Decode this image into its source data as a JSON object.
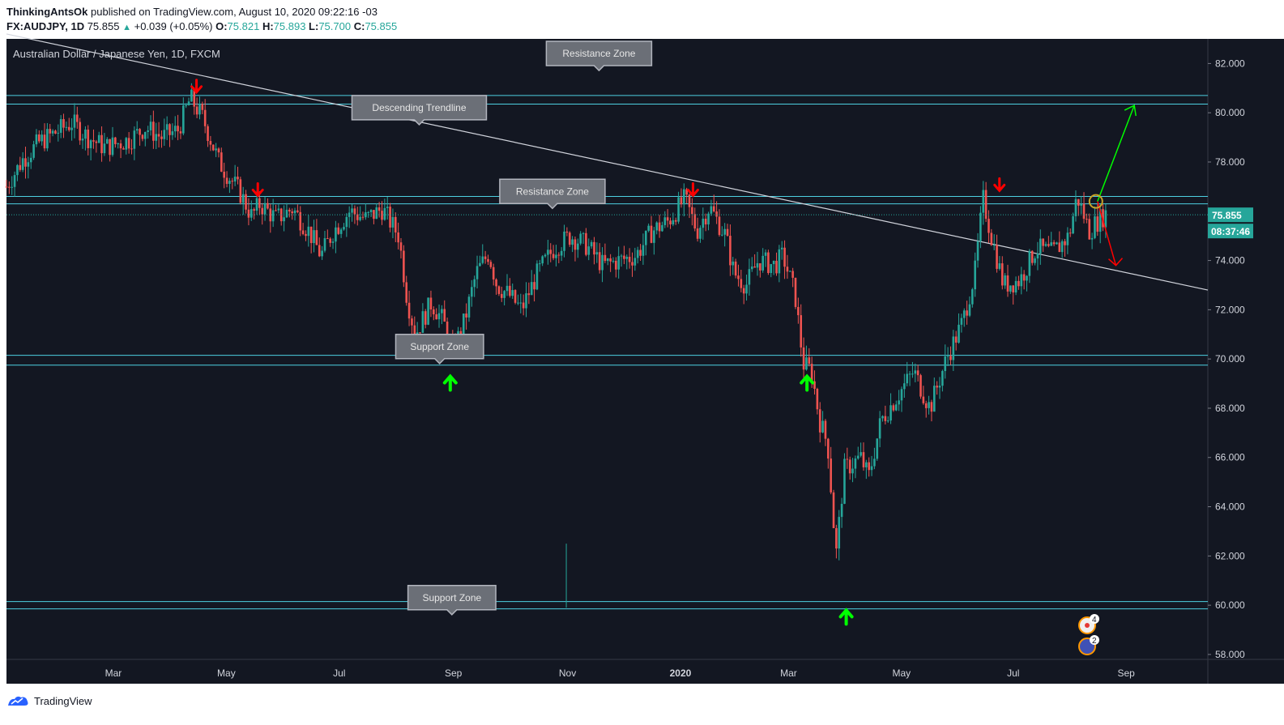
{
  "header": {
    "author": "ThinkingAntsOk",
    "published_text": "published on TradingView.com, August 10, 2020 09:22:16 -03"
  },
  "symbol_bar": {
    "symbol": "FX:AUDJPY, 1D",
    "last": "75.855",
    "change": "+0.039 (+0.05%)",
    "open_key": "O:",
    "open": "75.821",
    "high_key": "H:",
    "high": "75.893",
    "low_key": "L:",
    "low": "75.700",
    "close_key": "C:",
    "close": "75.855"
  },
  "chart_data": {
    "type": "candlestick",
    "title": "Australian Dollar / Japanese Yen, 1D, FXCM",
    "ylim": [
      57.8,
      83.0
    ],
    "y_ticks": [
      "82.000",
      "80.000",
      "78.000",
      "76.000",
      "74.000",
      "72.000",
      "70.000",
      "68.000",
      "66.000",
      "64.000",
      "62.000",
      "60.000",
      "58.000"
    ],
    "x_ticks": [
      "Mar",
      "May",
      "Jul",
      "Sep",
      "Nov",
      "2020",
      "Mar",
      "May",
      "Jul",
      "Sep"
    ],
    "price_label": "75.855",
    "countdown_label": "08:37:46",
    "price_path": [
      [
        0,
        77.0
      ],
      [
        0.02,
        78.1
      ],
      [
        0.04,
        78.8
      ],
      [
        0.06,
        79.2
      ],
      [
        0.08,
        79.6
      ],
      [
        0.1,
        79.0
      ],
      [
        0.12,
        78.6
      ],
      [
        0.15,
        78.9
      ],
      [
        0.17,
        79.4
      ],
      [
        0.19,
        79.0
      ],
      [
        0.21,
        79.3
      ],
      [
        0.225,
        80.6
      ],
      [
        0.24,
        79.8
      ],
      [
        0.26,
        78.0
      ],
      [
        0.285,
        76.8
      ],
      [
        0.3,
        75.8
      ],
      [
        0.31,
        76.3
      ],
      [
        0.33,
        75.7
      ],
      [
        0.35,
        76.1
      ],
      [
        0.37,
        75.2
      ],
      [
        0.385,
        74.2
      ],
      [
        0.4,
        75.2
      ],
      [
        0.42,
        76.0
      ],
      [
        0.44,
        75.7
      ],
      [
        0.46,
        76.1
      ],
      [
        0.48,
        75.0
      ],
      [
        0.49,
        72.5
      ],
      [
        0.5,
        71.0
      ],
      [
        0.52,
        72.3
      ],
      [
        0.535,
        71.5
      ],
      [
        0.545,
        70.2
      ],
      [
        0.56,
        71.5
      ],
      [
        0.575,
        73.5
      ],
      [
        0.59,
        74.3
      ],
      [
        0.6,
        73.0
      ],
      [
        0.615,
        72.6
      ],
      [
        0.63,
        72.0
      ],
      [
        0.65,
        73.5
      ],
      [
        0.67,
        74.5
      ],
      [
        0.69,
        75.0
      ],
      [
        0.71,
        74.6
      ],
      [
        0.73,
        73.8
      ],
      [
        0.75,
        74.0
      ],
      [
        0.77,
        74.2
      ],
      [
        0.79,
        75.2
      ],
      [
        0.81,
        75.6
      ],
      [
        0.83,
        76.5
      ],
      [
        0.845,
        75.2
      ],
      [
        0.86,
        76.2
      ],
      [
        0.88,
        75.0
      ],
      [
        0.89,
        73.5
      ],
      [
        0.905,
        73.0
      ],
      [
        0.92,
        74.0
      ],
      [
        0.94,
        73.8
      ],
      [
        0.95,
        74.2
      ],
      [
        0.965,
        72.6
      ],
      [
        0.975,
        69.8
      ],
      [
        0.985,
        69.5
      ],
      [
        0.995,
        67.5
      ],
      [
        1.005,
        66.5
      ],
      [
        1.015,
        62.0
      ],
      [
        1.025,
        65.5
      ],
      [
        1.045,
        66.0
      ],
      [
        1.055,
        65.2
      ],
      [
        1.07,
        67.5
      ],
      [
        1.09,
        68.5
      ],
      [
        1.11,
        69.5
      ],
      [
        1.13,
        68.0
      ],
      [
        1.15,
        70.0
      ],
      [
        1.17,
        71.5
      ],
      [
        1.185,
        73.5
      ],
      [
        1.195,
        76.5
      ],
      [
        1.205,
        75.0
      ],
      [
        1.22,
        73.0
      ],
      [
        1.24,
        73.2
      ],
      [
        1.26,
        74.5
      ],
      [
        1.28,
        74.3
      ],
      [
        1.3,
        75.0
      ],
      [
        1.31,
        76.6
      ],
      [
        1.325,
        75.2
      ],
      [
        1.335,
        75.6
      ],
      [
        1.345,
        75.9
      ]
    ],
    "trendline": {
      "from": [
        0.0,
        83.2
      ],
      "to": [
        1.47,
        72.8
      ]
    },
    "zones": [
      {
        "top": 80.7,
        "bottom": 80.35
      },
      {
        "top": 76.6,
        "bottom": 76.3
      },
      {
        "top": 70.15,
        "bottom": 69.75
      },
      {
        "top": 60.15,
        "bottom": 59.85
      }
    ],
    "annotations": [
      {
        "label": "Resistance Zone",
        "x": 0.725,
        "y": 82.9,
        "pointer": 80.7
      },
      {
        "label": "Descending Trendline",
        "x": 0.505,
        "y": 80.7,
        "pointer": 78.4
      },
      {
        "label": "Resistance Zone",
        "x": 0.668,
        "y": 77.3,
        "pointer": 76.6
      },
      {
        "label": "Support Zone",
        "x": 0.53,
        "y": 71.0,
        "pointer": 69.9
      },
      {
        "label": "Support Zone",
        "x": 0.545,
        "y": 60.8,
        "pointer": 60.15
      }
    ],
    "down_arrows": [
      [
        0.155,
        81.0
      ],
      [
        0.205,
        76.8
      ],
      [
        0.56,
        76.8
      ],
      [
        0.81,
        77.0
      ]
    ],
    "up_arrows": [
      [
        0.362,
        69.0
      ],
      [
        0.653,
        69.0
      ],
      [
        0.685,
        59.5
      ]
    ],
    "projection": {
      "origin": [
        0.89,
        76.4
      ],
      "up_to": [
        0.92,
        80.3
      ],
      "down_to": [
        0.905,
        73.8
      ]
    }
  },
  "footer": {
    "brand": "TradingView"
  },
  "colors": {
    "bg": "#131722",
    "up": "#26a69a",
    "down": "#ef5350",
    "zone": "#4dd0e1",
    "accent": "#00ff00",
    "arrow_down": "#ff0000"
  }
}
